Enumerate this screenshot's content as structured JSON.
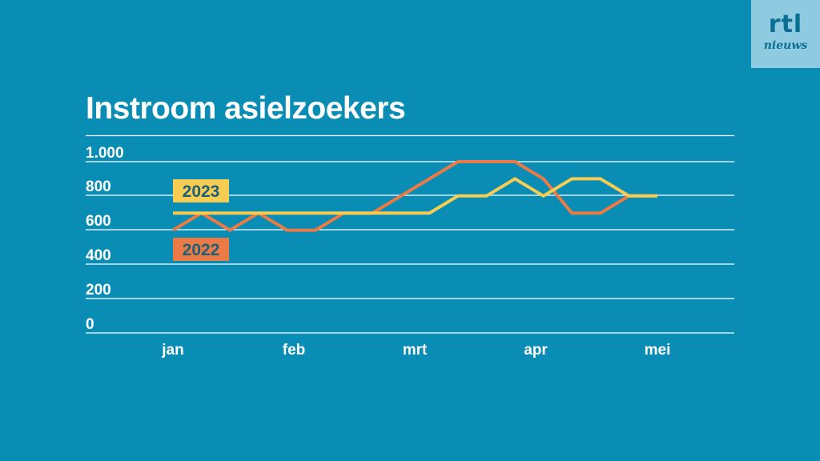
{
  "title": "Instroom asielzoekers",
  "logo": {
    "brand": "rtl",
    "sub": "nieuws"
  },
  "colors": {
    "background": "#0a8db5",
    "grid": "#ffffff",
    "s2023": "#f7cc52",
    "s2022": "#ec7a45",
    "label_text": "#1c5f78"
  },
  "chart_data": {
    "type": "line",
    "title": "Instroom asielzoekers",
    "xlabel": "",
    "ylabel": "",
    "ylim": [
      0,
      1000
    ],
    "yticks": [
      0,
      200,
      400,
      600,
      800,
      1000
    ],
    "ytick_labels": [
      "0",
      "200",
      "400",
      "600",
      "800",
      "1.000"
    ],
    "x_tick_labels": [
      "jan",
      "feb",
      "mrt",
      "apr",
      "mei"
    ],
    "x_tick_positions": [
      1,
      5.3,
      9.6,
      13.9,
      18.2
    ],
    "xlim": [
      1,
      20
    ],
    "grid": true,
    "legend": "inline labels",
    "series": [
      {
        "name": "2022",
        "x": [
          1,
          2,
          3,
          4,
          5,
          6,
          7,
          8,
          9,
          10,
          11,
          12,
          13,
          14,
          15,
          16,
          17,
          18
        ],
        "values": [
          600,
          700,
          600,
          700,
          600,
          600,
          700,
          700,
          800,
          900,
          1000,
          1000,
          1000,
          900,
          700,
          700,
          800,
          800
        ]
      },
      {
        "name": "2023",
        "x": [
          1,
          2,
          3,
          4,
          5,
          6,
          7,
          8,
          9,
          10,
          11,
          12,
          13,
          14,
          15,
          16,
          17,
          18
        ],
        "values": [
          700,
          700,
          700,
          700,
          700,
          700,
          700,
          700,
          700,
          700,
          800,
          800,
          900,
          800,
          900,
          900,
          800,
          800
        ]
      }
    ]
  }
}
